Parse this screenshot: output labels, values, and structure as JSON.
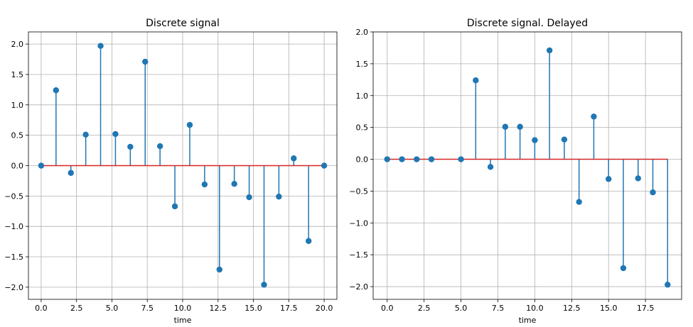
{
  "chart_data": [
    {
      "type": "stem",
      "title": "Discrete signal",
      "xlabel": "time",
      "ylabel": "",
      "grid": true,
      "xlim": [
        -0.9,
        20.9
      ],
      "ylim": [
        -2.2,
        2.2
      ],
      "xticks": [
        0.0,
        2.5,
        5.0,
        7.5,
        10.0,
        12.5,
        15.0,
        17.5,
        20.0
      ],
      "xtick_labels": [
        "0.0",
        "2.5",
        "5.0",
        "7.5",
        "10.0",
        "12.5",
        "15.0",
        "17.5",
        "20.0"
      ],
      "yticks": [
        2.0,
        1.5,
        1.0,
        0.5,
        0.0,
        -0.5,
        -1.0,
        -1.5,
        -2.0
      ],
      "ytick_labels": [
        "2.0",
        "1.5",
        "1.0",
        "0.5",
        "0.0",
        "−0.5",
        "−1.0",
        "−1.5",
        "−2.0"
      ],
      "baseline": 0,
      "x": [
        0.0,
        1.05,
        2.1,
        3.15,
        4.2,
        5.25,
        6.3,
        7.35,
        8.4,
        9.45,
        10.5,
        11.55,
        12.6,
        13.65,
        14.7,
        15.75,
        16.8,
        17.85,
        18.9,
        20.0
      ],
      "y": [
        0.0,
        1.24,
        -0.12,
        0.51,
        1.97,
        0.52,
        0.31,
        1.71,
        0.32,
        -0.67,
        0.67,
        -0.31,
        -1.71,
        -0.3,
        -0.52,
        -1.96,
        -0.51,
        0.12,
        -1.24,
        0.0
      ]
    },
    {
      "type": "stem",
      "title": "Discrete signal. Delayed",
      "xlabel": "time",
      "ylabel": "",
      "grid": true,
      "xlim": [
        -0.95,
        19.95
      ],
      "ylim": [
        -2.2,
        2.0
      ],
      "xticks": [
        0.0,
        2.5,
        5.0,
        7.5,
        10.0,
        12.5,
        15.0,
        17.5
      ],
      "xtick_labels": [
        "0.0",
        "2.5",
        "5.0",
        "7.5",
        "10.0",
        "12.5",
        "15.0",
        "17.5"
      ],
      "yticks": [
        2.0,
        1.5,
        1.0,
        0.5,
        0.0,
        -0.5,
        -1.0,
        -1.5,
        -2.0
      ],
      "ytick_labels": [
        "2.0",
        "1.5",
        "1.0",
        "0.5",
        "0.0",
        "−0.5",
        "−1.0",
        "−1.5",
        "−2.0"
      ],
      "baseline": 0,
      "x": [
        0,
        1,
        2,
        3,
        5,
        6,
        7,
        8,
        9,
        10,
        11,
        12,
        13,
        14,
        15,
        16,
        17,
        18,
        19
      ],
      "y": [
        0.0,
        0.0,
        0.0,
        0.0,
        0.0,
        1.24,
        -0.12,
        0.51,
        0.51,
        0.3,
        1.71,
        0.31,
        -0.67,
        0.67,
        -0.31,
        -1.71,
        -0.3,
        -0.52,
        -1.97
      ]
    }
  ]
}
